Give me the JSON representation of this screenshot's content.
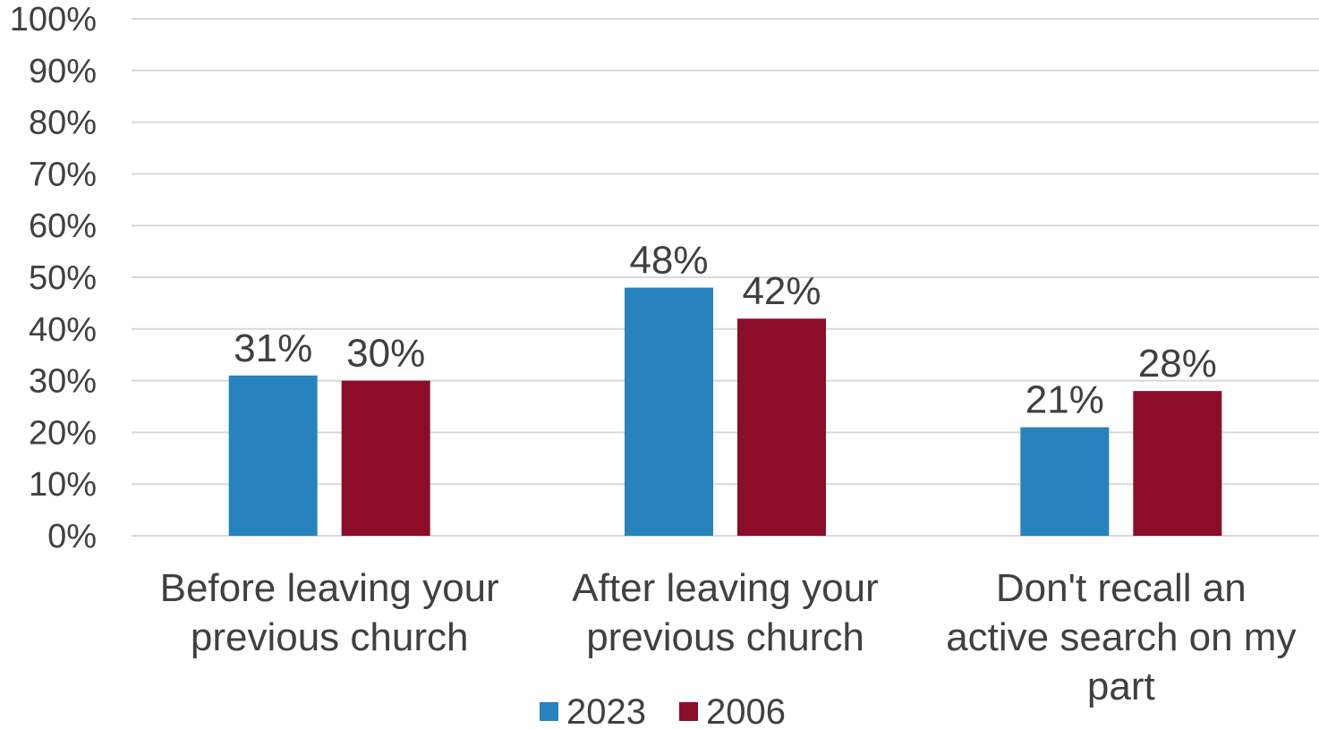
{
  "chart_data": {
    "type": "bar",
    "categories": [
      [
        "Before leaving your",
        "previous church"
      ],
      [
        "After leaving your",
        "previous church"
      ],
      [
        "Don't recall an",
        "active search on my",
        "part"
      ]
    ],
    "series": [
      {
        "name": "2023",
        "values": [
          31,
          48,
          21
        ],
        "labels": [
          "31%",
          "48%",
          "21%"
        ],
        "color": "#2683BD"
      },
      {
        "name": "2006",
        "values": [
          30,
          42,
          28
        ],
        "labels": [
          "30%",
          "42%",
          "28%"
        ],
        "color": "#8B0D2A"
      }
    ],
    "ylim": [
      0,
      100
    ],
    "yticks": [
      "0%",
      "10%",
      "20%",
      "30%",
      "40%",
      "50%",
      "60%",
      "70%",
      "80%",
      "90%",
      "100%"
    ],
    "grid": true,
    "legend": "bottom"
  }
}
